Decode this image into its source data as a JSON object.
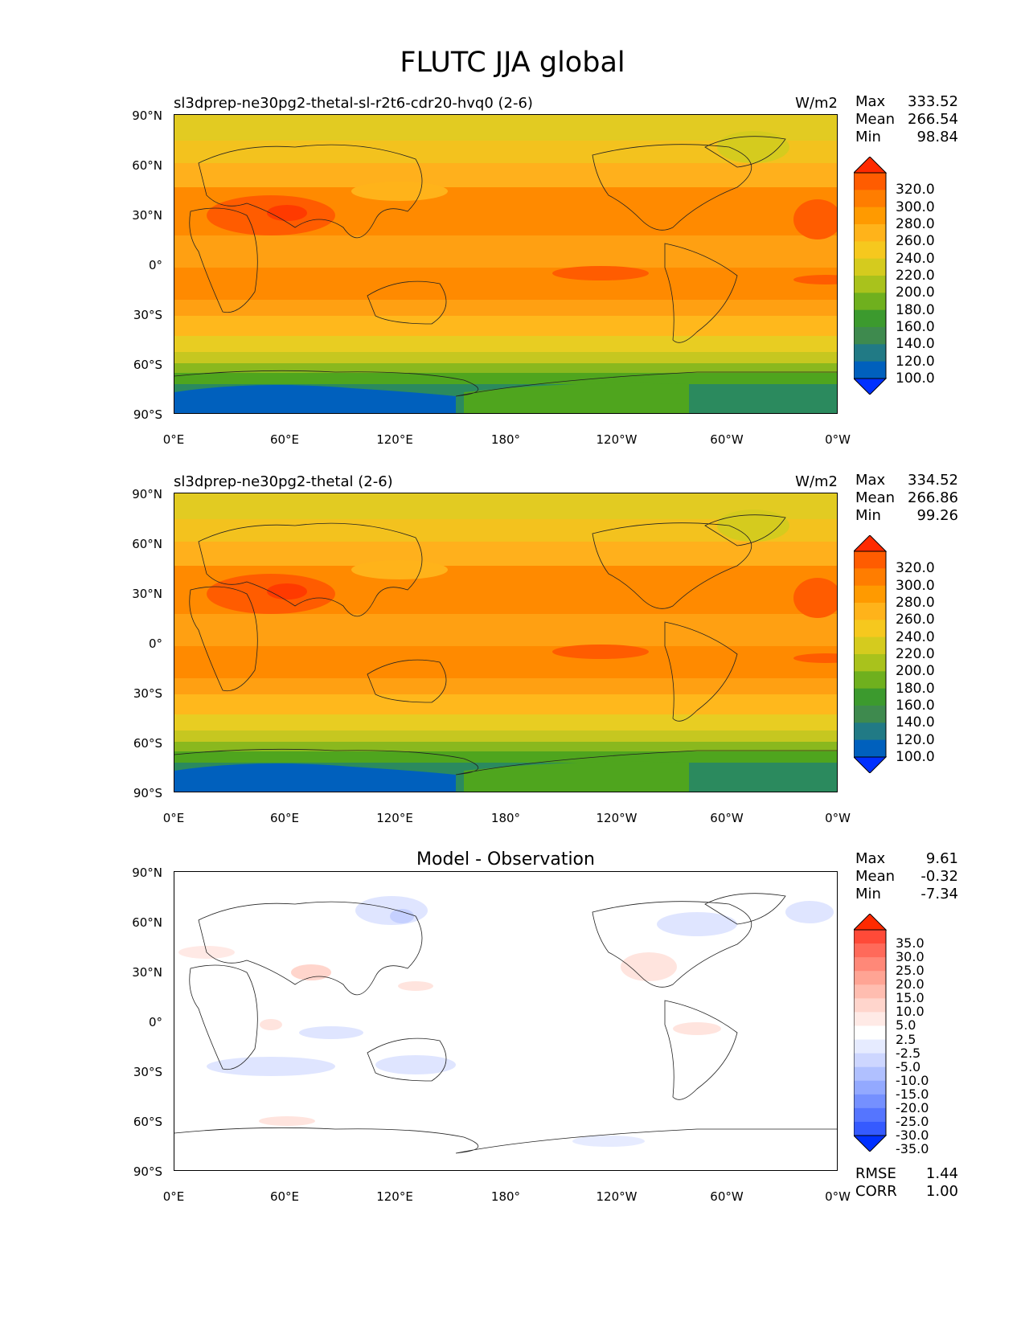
{
  "title": "FLUTC JJA global",
  "lat_labels": [
    "90°N",
    "60°N",
    "30°N",
    "0°",
    "30°S",
    "60°S",
    "90°S"
  ],
  "lon_labels": [
    "0°E",
    "60°E",
    "120°E",
    "180°",
    "120°W",
    "60°W",
    "0°W"
  ],
  "panels": [
    {
      "name": "test",
      "title": "sl3dprep-ne30pg2-thetal-sl-r2t6-cdr20-hvq0 (2-6)",
      "units": "W/m2",
      "stats": {
        "max_label": "Max",
        "max": "333.52",
        "mean_label": "Mean",
        "mean": "266.54",
        "min_label": "Min",
        "min": "98.84"
      },
      "colorbar": {
        "labels": [
          "320.0",
          "300.0",
          "280.0",
          "260.0",
          "240.0",
          "220.0",
          "200.0",
          "180.0",
          "160.0",
          "140.0",
          "120.0",
          "100.0"
        ],
        "colors": [
          "#ff2a00",
          "#ff5c00",
          "#ff7d00",
          "#ff9a00",
          "#ffb31a",
          "#f6c81e",
          "#d5cb1e",
          "#a9c21c",
          "#6fb01e",
          "#3c9a2e",
          "#3e8a4e",
          "#217a85",
          "#0060bd",
          "#0030ff"
        ]
      }
    },
    {
      "name": "reference",
      "title": "sl3dprep-ne30pg2-thetal (2-6)",
      "units": "W/m2",
      "stats": {
        "max_label": "Max",
        "max": "334.52",
        "mean_label": "Mean",
        "mean": "266.86",
        "min_label": "Min",
        "min": "99.26"
      },
      "colorbar": {
        "labels": [
          "320.0",
          "300.0",
          "280.0",
          "260.0",
          "240.0",
          "220.0",
          "200.0",
          "180.0",
          "160.0",
          "140.0",
          "120.0",
          "100.0"
        ],
        "colors": [
          "#ff2a00",
          "#ff5c00",
          "#ff7d00",
          "#ff9a00",
          "#ffb31a",
          "#f6c81e",
          "#d5cb1e",
          "#a9c21c",
          "#6fb01e",
          "#3c9a2e",
          "#3e8a4e",
          "#217a85",
          "#0060bd",
          "#0030ff"
        ]
      }
    },
    {
      "name": "diff",
      "title": "Model - Observation",
      "units": "",
      "stats": {
        "max_label": "Max",
        "max": "9.61",
        "mean_label": "Mean",
        "mean": "-0.32",
        "min_label": "Min",
        "min": "-7.34"
      },
      "rmse_label": "RMSE",
      "rmse": "1.44",
      "corr_label": "CORR",
      "corr": "1.00",
      "colorbar": {
        "labels": [
          "35.0",
          "30.0",
          "25.0",
          "20.0",
          "15.0",
          "10.0",
          "5.0",
          "2.5",
          "-2.5",
          "-5.0",
          "-10.0",
          "-15.0",
          "-20.0",
          "-25.0",
          "-30.0",
          "-35.0"
        ],
        "colors": [
          "#ff2a00",
          "#ff4a38",
          "#ff6a5a",
          "#ff8878",
          "#ffa494",
          "#ffbdb0",
          "#ffd5cc",
          "#ffeae6",
          "#ffffff",
          "#e6ebff",
          "#cdd6ff",
          "#b0c0ff",
          "#93a9ff",
          "#7590ff",
          "#5575ff",
          "#355aff",
          "#0030ff"
        ]
      }
    }
  ]
}
